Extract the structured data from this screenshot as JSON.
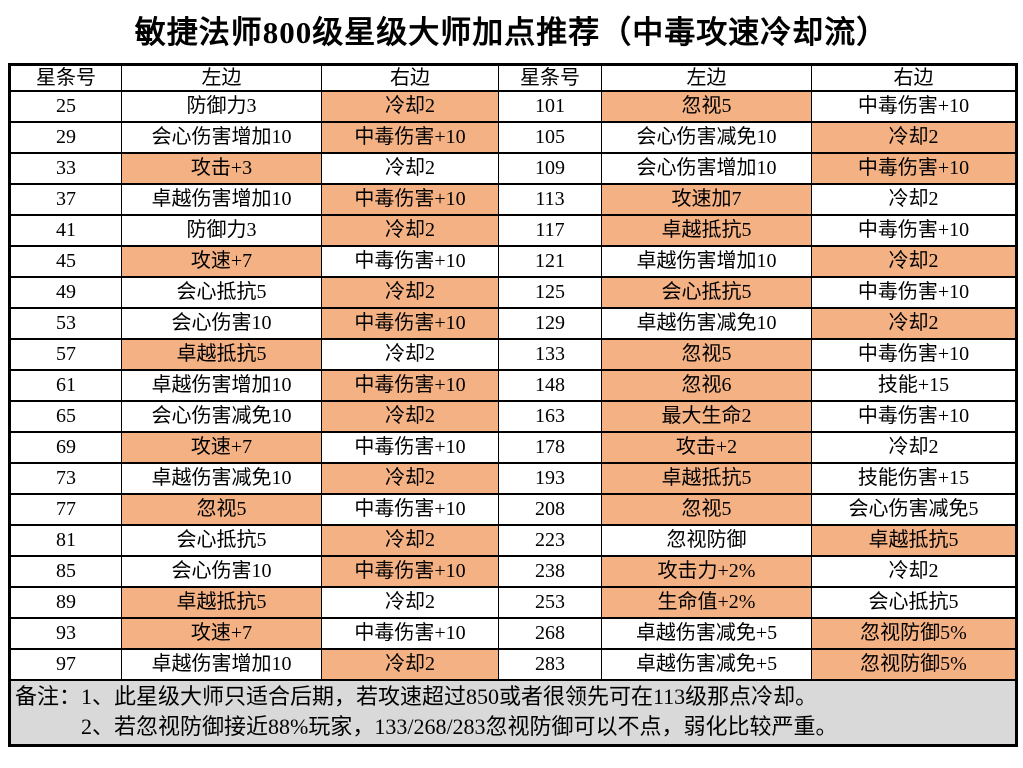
{
  "title": "敏捷法师800级星级大师加点推荐（中毒攻速冷却流）",
  "colors": {
    "highlight": "#F4B183",
    "notes_background": "#D9D9D9",
    "border": "#000000",
    "text": "#000000",
    "page_background": "#FFFFFF"
  },
  "table": {
    "headers": [
      "星条号",
      "左边",
      "右边",
      "星条号",
      "左边",
      "右边"
    ],
    "rows": [
      [
        {
          "t": "25",
          "hl": false
        },
        {
          "t": "防御力3",
          "hl": false
        },
        {
          "t": "冷却2",
          "hl": true
        },
        {
          "t": "101",
          "hl": false
        },
        {
          "t": "忽视5",
          "hl": true
        },
        {
          "t": "中毒伤害+10",
          "hl": false
        }
      ],
      [
        {
          "t": "29",
          "hl": false
        },
        {
          "t": "会心伤害增加10",
          "hl": false
        },
        {
          "t": "中毒伤害+10",
          "hl": true
        },
        {
          "t": "105",
          "hl": false
        },
        {
          "t": "会心伤害减免10",
          "hl": false
        },
        {
          "t": "冷却2",
          "hl": true
        }
      ],
      [
        {
          "t": "33",
          "hl": false
        },
        {
          "t": "攻击+3",
          "hl": true
        },
        {
          "t": "冷却2",
          "hl": false
        },
        {
          "t": "109",
          "hl": false
        },
        {
          "t": "会心伤害增加10",
          "hl": false
        },
        {
          "t": "中毒伤害+10",
          "hl": true
        }
      ],
      [
        {
          "t": "37",
          "hl": false
        },
        {
          "t": "卓越伤害增加10",
          "hl": false
        },
        {
          "t": "中毒伤害+10",
          "hl": true
        },
        {
          "t": "113",
          "hl": false
        },
        {
          "t": "攻速加7",
          "hl": true
        },
        {
          "t": "冷却2",
          "hl": false
        }
      ],
      [
        {
          "t": "41",
          "hl": false
        },
        {
          "t": "防御力3",
          "hl": false
        },
        {
          "t": "冷却2",
          "hl": true
        },
        {
          "t": "117",
          "hl": false
        },
        {
          "t": "卓越抵抗5",
          "hl": true
        },
        {
          "t": "中毒伤害+10",
          "hl": false
        }
      ],
      [
        {
          "t": "45",
          "hl": false
        },
        {
          "t": "攻速+7",
          "hl": true
        },
        {
          "t": "中毒伤害+10",
          "hl": false
        },
        {
          "t": "121",
          "hl": false
        },
        {
          "t": "卓越伤害增加10",
          "hl": false
        },
        {
          "t": "冷却2",
          "hl": true
        }
      ],
      [
        {
          "t": "49",
          "hl": false
        },
        {
          "t": "会心抵抗5",
          "hl": false
        },
        {
          "t": "冷却2",
          "hl": true
        },
        {
          "t": "125",
          "hl": false
        },
        {
          "t": "会心抵抗5",
          "hl": true
        },
        {
          "t": "中毒伤害+10",
          "hl": false
        }
      ],
      [
        {
          "t": "53",
          "hl": false
        },
        {
          "t": "会心伤害10",
          "hl": false
        },
        {
          "t": "中毒伤害+10",
          "hl": true
        },
        {
          "t": "129",
          "hl": false
        },
        {
          "t": "卓越伤害减免10",
          "hl": false
        },
        {
          "t": "冷却2",
          "hl": true
        }
      ],
      [
        {
          "t": "57",
          "hl": false
        },
        {
          "t": "卓越抵抗5",
          "hl": true
        },
        {
          "t": "冷却2",
          "hl": false
        },
        {
          "t": "133",
          "hl": false
        },
        {
          "t": "忽视5",
          "hl": true
        },
        {
          "t": "中毒伤害+10",
          "hl": false
        }
      ],
      [
        {
          "t": "61",
          "hl": false
        },
        {
          "t": "卓越伤害增加10",
          "hl": false
        },
        {
          "t": "中毒伤害+10",
          "hl": true
        },
        {
          "t": "148",
          "hl": false
        },
        {
          "t": "忽视6",
          "hl": true
        },
        {
          "t": "技能+15",
          "hl": false
        }
      ],
      [
        {
          "t": "65",
          "hl": false
        },
        {
          "t": "会心伤害减免10",
          "hl": false
        },
        {
          "t": "冷却2",
          "hl": true
        },
        {
          "t": "163",
          "hl": false
        },
        {
          "t": "最大生命2",
          "hl": true
        },
        {
          "t": "中毒伤害+10",
          "hl": false
        }
      ],
      [
        {
          "t": "69",
          "hl": false
        },
        {
          "t": "攻速+7",
          "hl": true
        },
        {
          "t": "中毒伤害+10",
          "hl": false
        },
        {
          "t": "178",
          "hl": false
        },
        {
          "t": "攻击+2",
          "hl": true
        },
        {
          "t": "冷却2",
          "hl": false
        }
      ],
      [
        {
          "t": "73",
          "hl": false
        },
        {
          "t": "卓越伤害减免10",
          "hl": false
        },
        {
          "t": "冷却2",
          "hl": true
        },
        {
          "t": "193",
          "hl": false
        },
        {
          "t": "卓越抵抗5",
          "hl": true
        },
        {
          "t": "技能伤害+15",
          "hl": false
        }
      ],
      [
        {
          "t": "77",
          "hl": false
        },
        {
          "t": "忽视5",
          "hl": true
        },
        {
          "t": "中毒伤害+10",
          "hl": false
        },
        {
          "t": "208",
          "hl": false
        },
        {
          "t": "忽视5",
          "hl": true
        },
        {
          "t": "会心伤害减免5",
          "hl": false
        }
      ],
      [
        {
          "t": "81",
          "hl": false
        },
        {
          "t": "会心抵抗5",
          "hl": false
        },
        {
          "t": "冷却2",
          "hl": true
        },
        {
          "t": "223",
          "hl": false
        },
        {
          "t": "忽视防御",
          "hl": false
        },
        {
          "t": "卓越抵抗5",
          "hl": true
        }
      ],
      [
        {
          "t": "85",
          "hl": false
        },
        {
          "t": "会心伤害10",
          "hl": false
        },
        {
          "t": "中毒伤害+10",
          "hl": true
        },
        {
          "t": "238",
          "hl": false
        },
        {
          "t": "攻击力+2%",
          "hl": true
        },
        {
          "t": "冷却2",
          "hl": false
        }
      ],
      [
        {
          "t": "89",
          "hl": false
        },
        {
          "t": "卓越抵抗5",
          "hl": true
        },
        {
          "t": "冷却2",
          "hl": false
        },
        {
          "t": "253",
          "hl": false
        },
        {
          "t": "生命值+2%",
          "hl": true
        },
        {
          "t": "会心抵抗5",
          "hl": false
        }
      ],
      [
        {
          "t": "93",
          "hl": false
        },
        {
          "t": "攻速+7",
          "hl": true
        },
        {
          "t": "中毒伤害+10",
          "hl": false
        },
        {
          "t": "268",
          "hl": false
        },
        {
          "t": "卓越伤害减免+5",
          "hl": false
        },
        {
          "t": "忽视防御5%",
          "hl": true
        }
      ],
      [
        {
          "t": "97",
          "hl": false
        },
        {
          "t": "卓越伤害增加10",
          "hl": false
        },
        {
          "t": "冷却2",
          "hl": true
        },
        {
          "t": "283",
          "hl": false
        },
        {
          "t": "卓越伤害减免+5",
          "hl": false
        },
        {
          "t": "忽视防御5%",
          "hl": true
        }
      ]
    ]
  },
  "notes": [
    "备注：1、此星级大师只适合后期，若攻速超过850或者很领先可在113级那点冷却。",
    "2、若忽视防御接近88%玩家，133/268/283忽视防御可以不点，弱化比较严重。"
  ]
}
